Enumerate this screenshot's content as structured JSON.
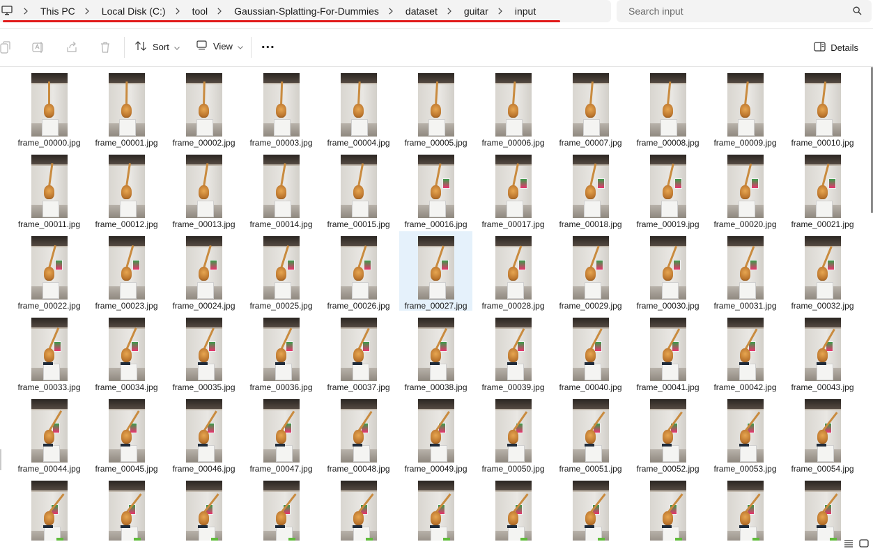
{
  "breadcrumb": [
    "This PC",
    "Local Disk (C:)",
    "tool",
    "Gaussian-Splatting-For-Dummies",
    "dataset",
    "guitar",
    "input"
  ],
  "search": {
    "placeholder": "Search input"
  },
  "toolbar": {
    "sort_label": "Sort",
    "view_label": "View",
    "more_label": "...",
    "details_label": "Details",
    "icons": [
      "copy-icon",
      "rename-icon",
      "share-icon",
      "delete-icon",
      "sort-icon",
      "view-icon",
      "more-icon",
      "details-pane-icon"
    ]
  },
  "files": [
    "frame_00000.jpg",
    "frame_00001.jpg",
    "frame_00002.jpg",
    "frame_00003.jpg",
    "frame_00004.jpg",
    "frame_00005.jpg",
    "frame_00006.jpg",
    "frame_00007.jpg",
    "frame_00008.jpg",
    "frame_00009.jpg",
    "frame_00010.jpg",
    "frame_00011.jpg",
    "frame_00012.jpg",
    "frame_00013.jpg",
    "frame_00014.jpg",
    "frame_00015.jpg",
    "frame_00016.jpg",
    "frame_00017.jpg",
    "frame_00018.jpg",
    "frame_00019.jpg",
    "frame_00020.jpg",
    "frame_00021.jpg",
    "frame_00022.jpg",
    "frame_00023.jpg",
    "frame_00024.jpg",
    "frame_00025.jpg",
    "frame_00026.jpg",
    "frame_00027.jpg",
    "frame_00028.jpg",
    "frame_00029.jpg",
    "frame_00030.jpg",
    "frame_00031.jpg",
    "frame_00032.jpg",
    "frame_00033.jpg",
    "frame_00034.jpg",
    "frame_00035.jpg",
    "frame_00036.jpg",
    "frame_00037.jpg",
    "frame_00038.jpg",
    "frame_00039.jpg",
    "frame_00040.jpg",
    "frame_00041.jpg",
    "frame_00042.jpg",
    "frame_00043.jpg",
    "frame_00044.jpg",
    "frame_00045.jpg",
    "frame_00046.jpg",
    "frame_00047.jpg",
    "frame_00048.jpg",
    "frame_00049.jpg",
    "frame_00050.jpg",
    "frame_00051.jpg",
    "frame_00052.jpg",
    "frame_00053.jpg",
    "frame_00054.jpg"
  ],
  "partial_row_visible_count": 11,
  "selected_file": "frame_00027.jpg",
  "colors": {
    "accent_underline": "#e11a1a",
    "selection": "#e5f1fb"
  },
  "view_toggle_icons": [
    "details-view-icon",
    "tiles-view-icon"
  ]
}
